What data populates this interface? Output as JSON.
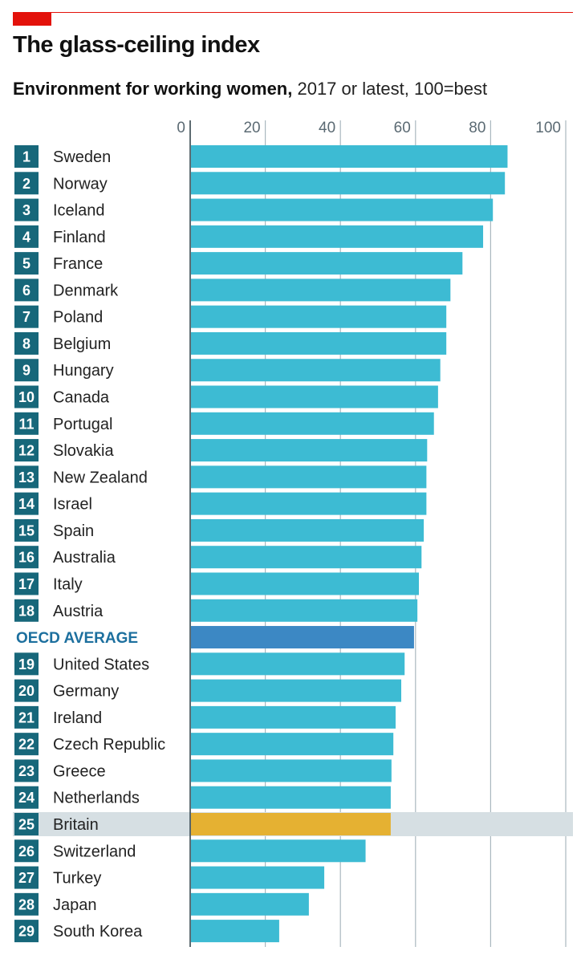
{
  "header": {
    "title": "The glass-ceiling index",
    "subtitle_bold": "Environment for working women,",
    "subtitle_rest": " 2017 or latest, 100=best"
  },
  "colors": {
    "bar": "#3dbbd3",
    "oecd_bar": "#3c88c4",
    "highlight_bar": "#e5b132",
    "highlight_band": "#d6dfe3",
    "rank_box": "#17677a",
    "oecd_text": "#1c6f9e",
    "grid": "#aab8bf",
    "axis": "#36474f",
    "accent": "#e3120b"
  },
  "chart_data": {
    "type": "bar",
    "orientation": "horizontal",
    "title": "The glass-ceiling index",
    "subtitle": "Environment for working women, 2017 or latest, 100=best",
    "xlim": [
      0,
      100
    ],
    "xticks": [
      0,
      20,
      40,
      60,
      80,
      100
    ],
    "grid": true,
    "rows": [
      {
        "rank": "1",
        "label": "Sweden",
        "value": 84.5
      },
      {
        "rank": "2",
        "label": "Norway",
        "value": 83.8
      },
      {
        "rank": "3",
        "label": "Iceland",
        "value": 80.6
      },
      {
        "rank": "4",
        "label": "Finland",
        "value": 78.0
      },
      {
        "rank": "5",
        "label": "France",
        "value": 72.5
      },
      {
        "rank": "6",
        "label": "Denmark",
        "value": 69.3
      },
      {
        "rank": "7",
        "label": "Poland",
        "value": 68.2
      },
      {
        "rank": "8",
        "label": "Belgium",
        "value": 68.2
      },
      {
        "rank": "9",
        "label": "Hungary",
        "value": 66.6
      },
      {
        "rank": "10",
        "label": "Canada",
        "value": 66.0
      },
      {
        "rank": "11",
        "label": "Portugal",
        "value": 64.9
      },
      {
        "rank": "12",
        "label": "Slovakia",
        "value": 63.1
      },
      {
        "rank": "13",
        "label": "New Zealand",
        "value": 62.9
      },
      {
        "rank": "14",
        "label": "Israel",
        "value": 62.9
      },
      {
        "rank": "15",
        "label": "Spain",
        "value": 62.2
      },
      {
        "rank": "16",
        "label": "Australia",
        "value": 61.6
      },
      {
        "rank": "17",
        "label": "Italy",
        "value": 60.9
      },
      {
        "rank": "18",
        "label": "Austria",
        "value": 60.5
      },
      {
        "rank": "",
        "label": "OECD AVERAGE",
        "value": 59.6,
        "kind": "average"
      },
      {
        "rank": "19",
        "label": "United States",
        "value": 57.1
      },
      {
        "rank": "20",
        "label": "Germany",
        "value": 56.2
      },
      {
        "rank": "21",
        "label": "Ireland",
        "value": 54.7
      },
      {
        "rank": "22",
        "label": "Czech Republic",
        "value": 54.1
      },
      {
        "rank": "23",
        "label": "Greece",
        "value": 53.6
      },
      {
        "rank": "24",
        "label": "Netherlands",
        "value": 53.4
      },
      {
        "rank": "25",
        "label": "Britain",
        "value": 53.4,
        "kind": "highlight"
      },
      {
        "rank": "26",
        "label": "Switzerland",
        "value": 46.7
      },
      {
        "rank": "27",
        "label": "Turkey",
        "value": 35.7
      },
      {
        "rank": "28",
        "label": "Japan",
        "value": 31.6
      },
      {
        "rank": "29",
        "label": "South Korea",
        "value": 23.7
      }
    ]
  }
}
